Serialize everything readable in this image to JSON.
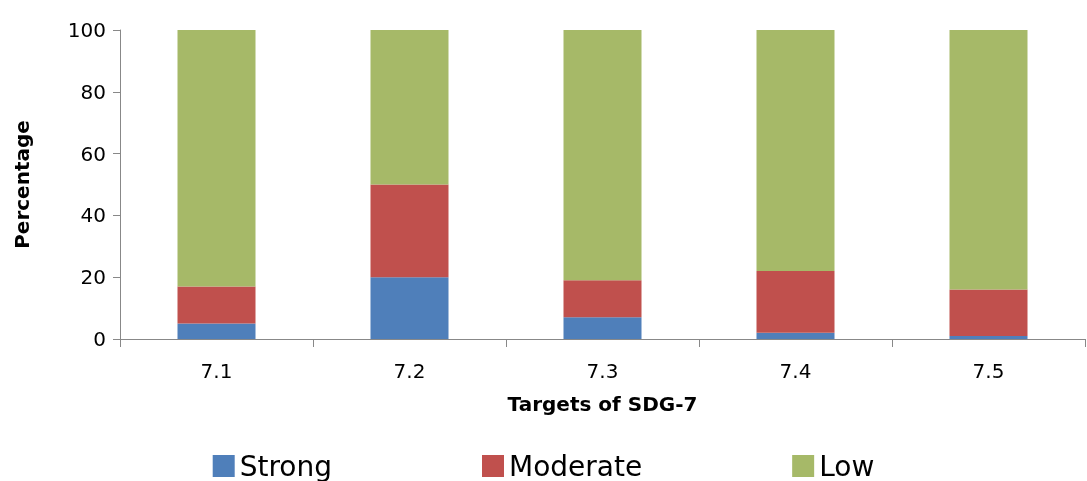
{
  "chart_data": {
    "type": "bar",
    "stacked": true,
    "xlabel": "Targets of SDG-7",
    "ylabel": "Percentage",
    "categories": [
      "7.1",
      "7.2",
      "7.3",
      "7.4",
      "7.5"
    ],
    "series": [
      {
        "name": "Strong",
        "color": "#4f7fba",
        "values": [
          5,
          20,
          7,
          2,
          1
        ]
      },
      {
        "name": "Moderate",
        "color": "#c0504d",
        "values": [
          12,
          30,
          12,
          20,
          15
        ]
      },
      {
        "name": "Low",
        "color": "#a6b968",
        "values": [
          83,
          50,
          81,
          78,
          84
        ]
      }
    ],
    "ylim": [
      0,
      100
    ],
    "yticks": [
      0,
      20,
      40,
      60,
      80,
      100
    ],
    "grid": false,
    "legend": "bottom"
  }
}
